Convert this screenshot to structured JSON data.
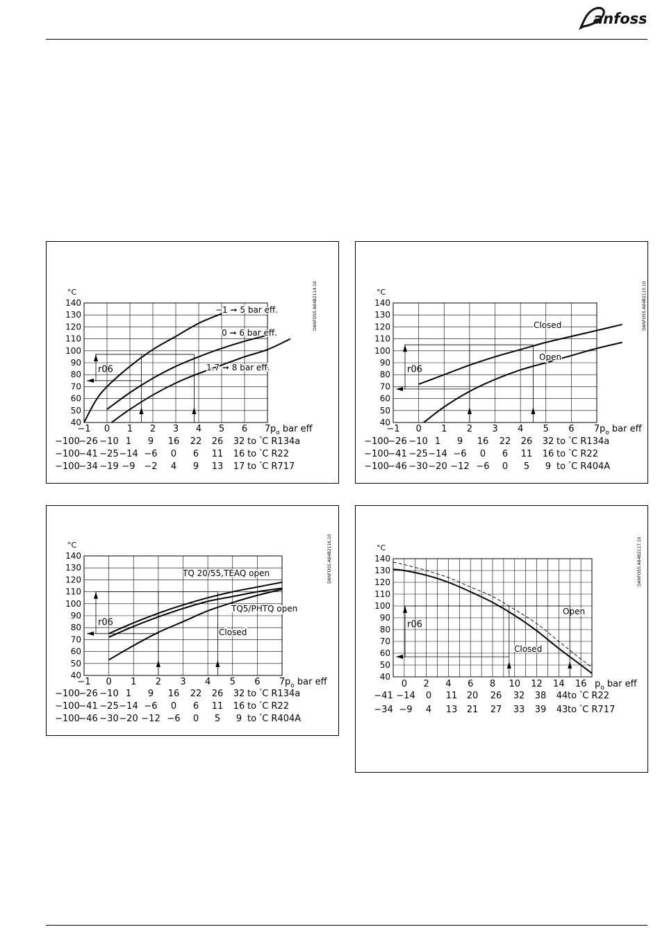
{
  "header": {
    "brand": "Danfoss"
  },
  "chart_data": [
    {
      "type": "line",
      "title": "",
      "ylabel": "°C",
      "xlabel": "p_o bar eff",
      "y_unit": "°C",
      "xlim": [
        -1,
        7
      ],
      "ylim": [
        40,
        140
      ],
      "x_ticks": [
        "−1",
        "0",
        "1",
        "2",
        "3",
        "4",
        "5",
        "6",
        "7"
      ],
      "y_ticks": [
        "140",
        "130",
        "120",
        "110",
        "100",
        "90",
        "80",
        "70",
        "60",
        "50",
        "40"
      ],
      "side_code": "DANFOSS A84B2114.10",
      "series": [
        {
          "name": "−1 ➞ 5 bar eff.",
          "x": [
            -1,
            -0.5,
            0,
            1,
            2,
            3,
            4,
            5
          ],
          "y": [
            40,
            58,
            70,
            87,
            101,
            112,
            123,
            131
          ]
        },
        {
          "name": "0 ➞ 6 bar eff.",
          "x": [
            0,
            1,
            2,
            3,
            4,
            5,
            6,
            7
          ],
          "y": [
            51,
            65,
            77,
            87,
            95,
            102,
            108,
            113
          ]
        },
        {
          "name": "1.7 ➞ 8 bar eff.",
          "x": [
            0.2,
            1,
            2,
            3,
            4,
            5,
            6,
            7,
            8
          ],
          "y": [
            40,
            51,
            63,
            73,
            81,
            88,
            95,
            101,
            110
          ]
        }
      ],
      "reference_label": "r06",
      "scale_rows": [
        {
          "label": "to °C R134a",
          "values": [
            "−100",
            "−26",
            "−10",
            "1",
            "9",
            "16",
            "22",
            "26",
            "32"
          ]
        },
        {
          "label": "to °C R22",
          "values": [
            "−100",
            "−41",
            "−25",
            "−14",
            "−6",
            "0",
            "6",
            "11",
            "16"
          ]
        },
        {
          "label": "to °C R717",
          "values": [
            "−100",
            "−34",
            "−19",
            "−9",
            "−2",
            "4",
            "9",
            "13",
            "17"
          ]
        }
      ]
    },
    {
      "type": "line",
      "title": "",
      "ylabel": "°C",
      "xlabel": "p_o bar eff",
      "xlim": [
        -1,
        7
      ],
      "ylim": [
        40,
        140
      ],
      "x_ticks": [
        "−1",
        "0",
        "1",
        "2",
        "3",
        "4",
        "5",
        "6",
        "7"
      ],
      "y_ticks": [
        "140",
        "130",
        "120",
        "110",
        "100",
        "90",
        "80",
        "70",
        "60",
        "50",
        "40"
      ],
      "side_code": "DANFOSS A84B2115.10",
      "series": [
        {
          "name": "Closed",
          "x": [
            0,
            1,
            2,
            3,
            4,
            5,
            6,
            7,
            8
          ],
          "y": [
            72,
            80,
            88,
            95,
            101,
            107,
            112,
            117,
            122
          ]
        },
        {
          "name": "Open",
          "x": [
            0.2,
            1,
            2,
            3,
            4,
            5,
            6,
            7,
            8
          ],
          "y": [
            40,
            53,
            66,
            76,
            84,
            90,
            96,
            102,
            107
          ]
        }
      ],
      "reference_label": "r06",
      "scale_rows": [
        {
          "label": "to °C R134a",
          "values": [
            "−100",
            "−26",
            "−10",
            "1",
            "9",
            "16",
            "22",
            "26",
            "32"
          ]
        },
        {
          "label": "to °C R22",
          "values": [
            "−100",
            "−41",
            "−25",
            "−14",
            "−6",
            "0",
            "6",
            "11",
            "16"
          ]
        },
        {
          "label": "to °C R404A",
          "values": [
            "−100",
            "−46",
            "−30",
            "−20",
            "−12",
            "−6",
            "0",
            "5",
            "9"
          ]
        }
      ]
    },
    {
      "type": "line",
      "title": "",
      "ylabel": "°C",
      "xlabel": "p_o bar eff",
      "xlim": [
        -1,
        7
      ],
      "ylim": [
        40,
        140
      ],
      "x_ticks": [
        "−1",
        "0",
        "1",
        "2",
        "3",
        "4",
        "5",
        "6",
        "7"
      ],
      "y_ticks": [
        "140",
        "130",
        "120",
        "110",
        "100",
        "90",
        "80",
        "70",
        "60",
        "50",
        "40"
      ],
      "side_code": "DANFOSS A84B2116.10",
      "series": [
        {
          "name": "TQ 20/55,TEAQ open",
          "x": [
            0,
            1,
            2,
            3,
            4,
            5,
            6,
            7
          ],
          "y": [
            75,
            84,
            92,
            99,
            105,
            110,
            114,
            118
          ]
        },
        {
          "name": "TQ5/PHTQ open",
          "x": [
            0,
            1,
            2,
            3,
            4,
            5,
            6,
            7
          ],
          "y": [
            72,
            81,
            89,
            96,
            102,
            106,
            110,
            113
          ]
        },
        {
          "name": "Closed",
          "x": [
            0,
            1,
            2,
            3,
            4,
            5,
            6,
            7
          ],
          "y": [
            53,
            65,
            76,
            85,
            94,
            101,
            107,
            112
          ]
        }
      ],
      "reference_label": "r06",
      "scale_rows": [
        {
          "label": "to °C R134a",
          "values": [
            "−100",
            "−26",
            "−10",
            "1",
            "9",
            "16",
            "22",
            "26",
            "32"
          ]
        },
        {
          "label": "to °C R22",
          "values": [
            "−100",
            "−41",
            "−25",
            "−14",
            "−6",
            "0",
            "6",
            "11",
            "16"
          ]
        },
        {
          "label": "to °C R404A",
          "values": [
            "−100",
            "−46",
            "−30",
            "−20",
            "−12",
            "−6",
            "0",
            "5",
            "9"
          ]
        }
      ]
    },
    {
      "type": "line",
      "title": "",
      "ylabel": "°C",
      "xlabel": "p_o bar eff",
      "xlim": [
        -1,
        17
      ],
      "ylim": [
        40,
        140
      ],
      "x_ticks": [
        "0",
        "2",
        "4",
        "6",
        "8",
        "10",
        "12",
        "14",
        "16"
      ],
      "y_ticks": [
        "140",
        "130",
        "120",
        "110",
        "100",
        "90",
        "80",
        "70",
        "60",
        "50",
        "40"
      ],
      "side_code": "DANFOSS A84B2117.10",
      "series": [
        {
          "name": "Closed",
          "x": [
            -1,
            0,
            2,
            4,
            6,
            8,
            10,
            12,
            14,
            16,
            17
          ],
          "y": [
            131,
            130,
            126,
            120,
            112,
            103,
            92,
            79,
            64,
            50,
            43
          ]
        },
        {
          "name": "Open",
          "x": [
            -1,
            0,
            2,
            4,
            6,
            8,
            10,
            12,
            14,
            16,
            17
          ],
          "y": [
            137,
            135,
            130,
            124,
            116,
            108,
            97,
            85,
            70,
            55,
            48
          ]
        }
      ],
      "reference_label": "r06",
      "scale_rows": [
        {
          "label": "to °C R22",
          "values": [
            "−41",
            "−14",
            "0",
            "11",
            "20",
            "26",
            "32",
            "38",
            "44"
          ]
        },
        {
          "label": "to °C R717",
          "values": [
            "−34",
            "−9",
            "4",
            "13",
            "21",
            "27",
            "33",
            "39",
            "43"
          ]
        }
      ]
    }
  ]
}
